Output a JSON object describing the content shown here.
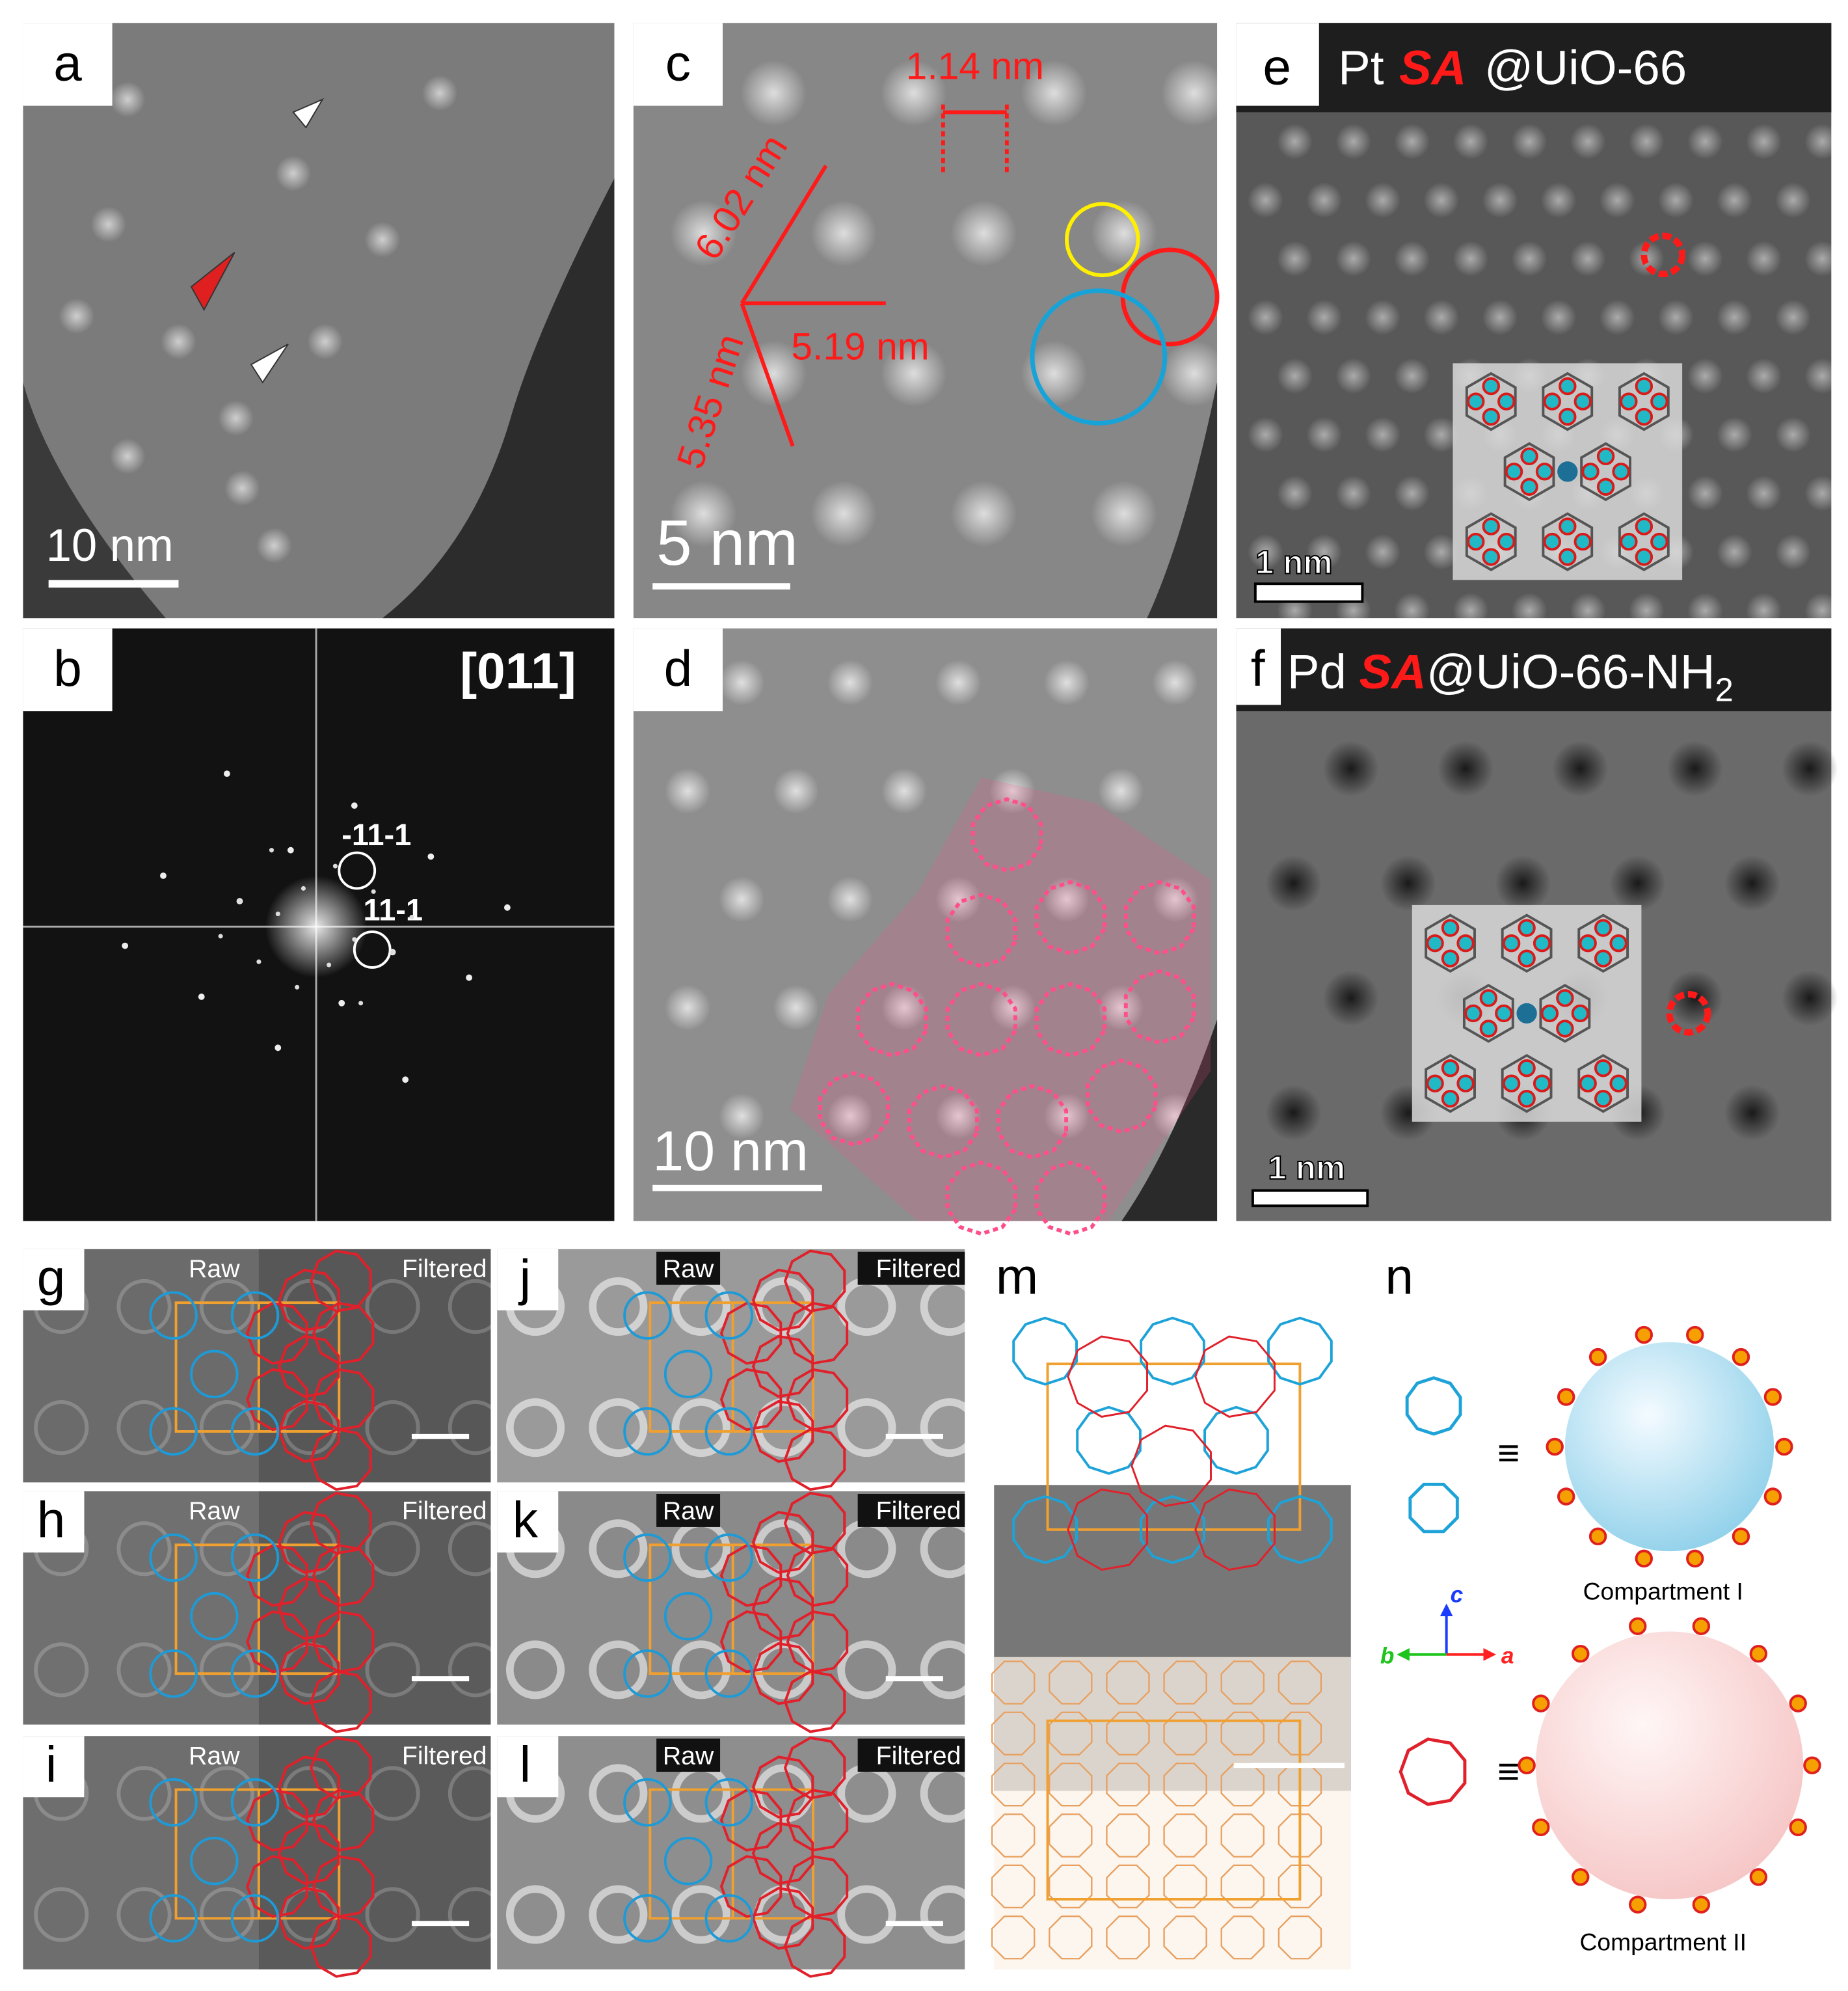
{
  "panels": {
    "a": {
      "label": "a",
      "scale_bar": "10 nm"
    },
    "b": {
      "label": "b",
      "zone_axis": "[011]",
      "spots": [
        "-11-1",
        "11-1"
      ]
    },
    "c": {
      "label": "c",
      "scale_bar": "5 nm",
      "measurements": [
        "1.14 nm",
        "6.02 nm",
        "5.19 nm",
        "5.35 nm"
      ]
    },
    "d": {
      "label": "d",
      "scale_bar": "10 nm"
    },
    "e": {
      "label": "e",
      "title": [
        "Pt",
        "SA",
        "@UiO-66"
      ],
      "scale_bar": "1 nm"
    },
    "f": {
      "label": "f",
      "title": [
        "Pd",
        "SA",
        "@UiO-66-NH",
        "2"
      ],
      "scale_bar": "1 nm"
    },
    "g": {
      "label": "g",
      "left": "Raw",
      "right": "Filtered"
    },
    "h": {
      "label": "h",
      "left": "Raw",
      "right": "Filtered"
    },
    "i": {
      "label": "i",
      "left": "Raw",
      "right": "Filtered"
    },
    "j": {
      "label": "j",
      "left": "Raw",
      "right": "Filtered"
    },
    "k": {
      "label": "k",
      "left": "Raw",
      "right": "Filtered"
    },
    "l": {
      "label": "l",
      "left": "Raw",
      "right": "Filtered"
    },
    "m": {
      "label": "m"
    },
    "n": {
      "label": "n",
      "axes": [
        "c",
        "b",
        "a"
      ],
      "equiv": [
        "≡",
        "≡"
      ],
      "compartments": [
        "Compartment I",
        "Compartment II"
      ]
    }
  }
}
